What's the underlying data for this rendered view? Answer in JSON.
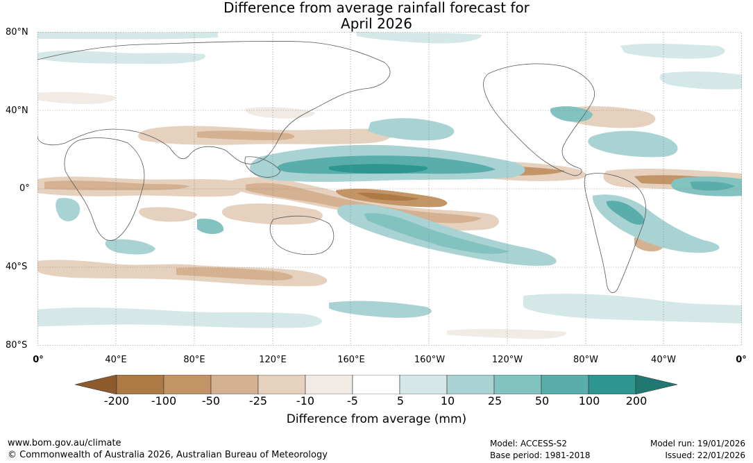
{
  "title_line1": "Difference from average rainfall forecast for",
  "title_line2": "April 2026",
  "lat_labels": [
    "80°N",
    "40°N",
    "0°",
    "40°S",
    "80°S"
  ],
  "lon_labels": [
    "0°",
    "40°E",
    "80°E",
    "120°E",
    "160°E",
    "160°W",
    "120°W",
    "80°W",
    "40°W",
    "0°"
  ],
  "colorbar": {
    "ticks": [
      "-200",
      "-100",
      "-50",
      "-25",
      "-10",
      "-5",
      "5",
      "10",
      "25",
      "50",
      "100",
      "200"
    ],
    "colors": [
      "#8c5a2b",
      "#ad7944",
      "#c39466",
      "#d4b291",
      "#e5d1be",
      "#f1ebe6",
      "#ffffff",
      "#d3e8e7",
      "#a9d3d2",
      "#82c2c0",
      "#59aeac",
      "#2f9591",
      "#217873"
    ],
    "label": "Difference from average (mm)"
  },
  "footer": {
    "url": "www.bom.gov.au/climate",
    "copyright": "© Commonwealth of Australia 2026, Australian Bureau of Meteorology",
    "model": "Model: ACCESS-S2",
    "base_period": "Base period: 1981-2018",
    "model_run": "Model run: 19/01/2026",
    "issued": "Issued: 22/01/2026"
  }
}
